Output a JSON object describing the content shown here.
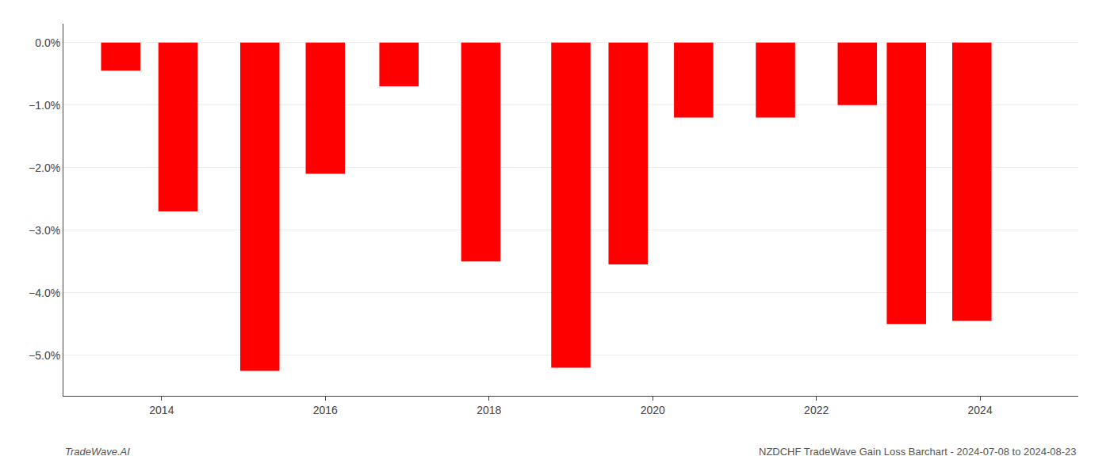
{
  "chart_data": {
    "type": "bar",
    "x": [
      2013.5,
      2014.2,
      2015.2,
      2016.0,
      2016.9,
      2017.9,
      2019.0,
      2019.7,
      2020.5,
      2021.5,
      2022.5,
      2023.1,
      2023.9
    ],
    "values": [
      -0.45,
      -2.7,
      -5.25,
      -2.1,
      -0.7,
      -3.5,
      -5.2,
      -3.55,
      -1.2,
      -1.2,
      -1.0,
      -4.5,
      -4.45
    ],
    "color": "#ff0000",
    "xlim": [
      2012.8,
      2025.2
    ],
    "ylim": [
      -5.65,
      0.3
    ],
    "xticks": [
      2014,
      2016,
      2018,
      2020,
      2022,
      2024
    ],
    "yticks": [
      {
        "value": 0.0,
        "label": "0.0%"
      },
      {
        "value": -1.0,
        "label": "−1.0%"
      },
      {
        "value": -2.0,
        "label": "−2.0%"
      },
      {
        "value": -3.0,
        "label": "−3.0%"
      },
      {
        "value": -4.0,
        "label": "−4.0%"
      },
      {
        "value": -5.0,
        "label": "−5.0%"
      }
    ],
    "grid": true,
    "annotations": [
      "TradeWave.AI",
      "NZDCHF TradeWave Gain Loss Barchart - 2024-07-08 to 2024-08-23"
    ]
  }
}
